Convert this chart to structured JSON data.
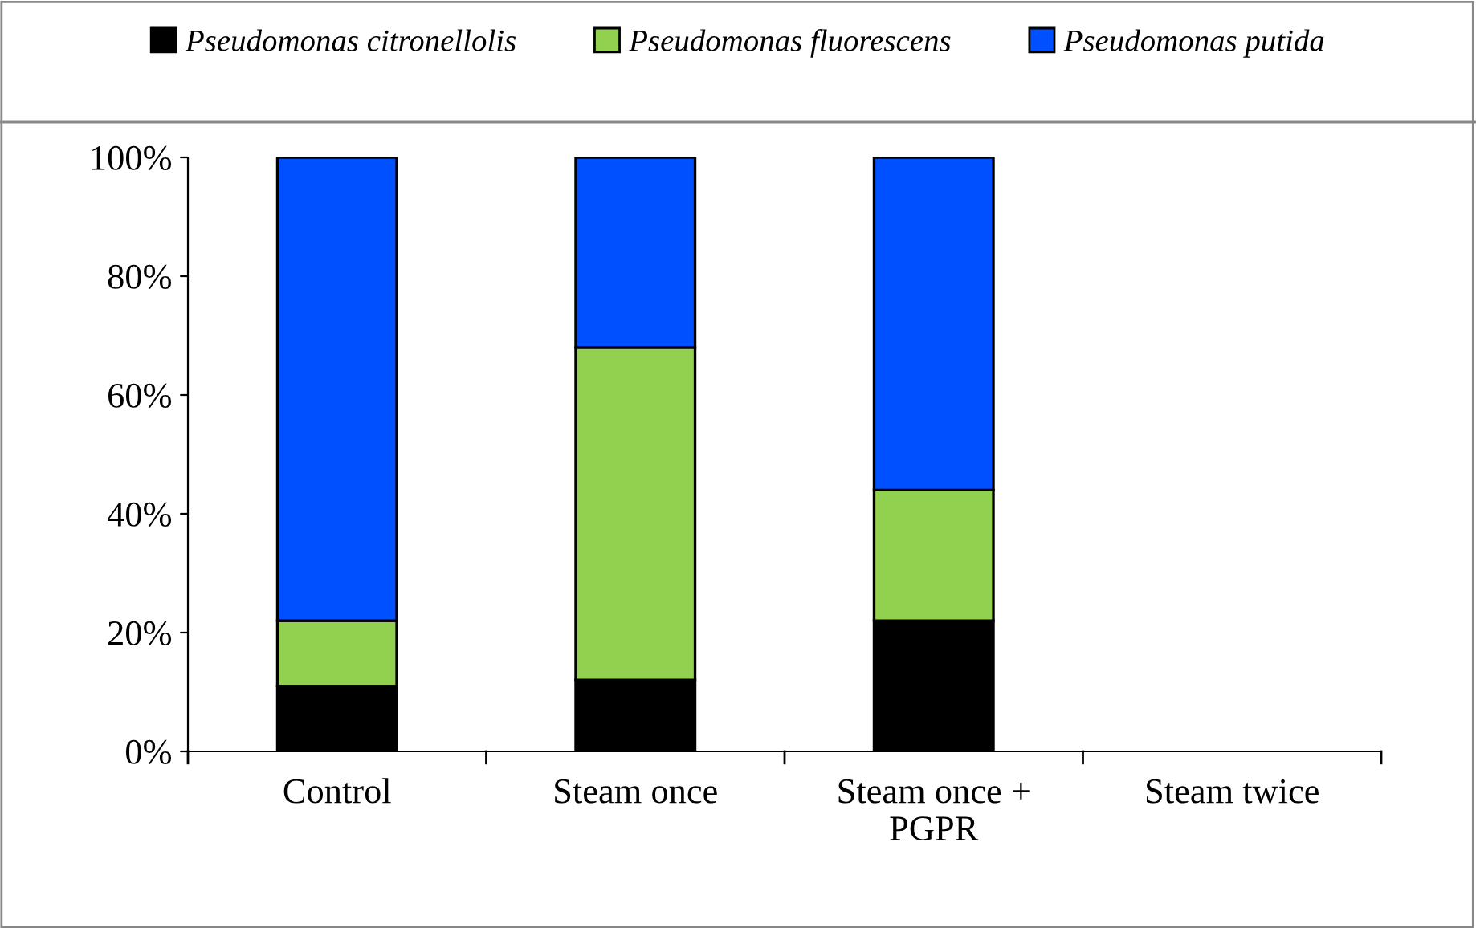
{
  "chart_data": {
    "type": "bar",
    "stacked": true,
    "categories": [
      "Control",
      "Steam once",
      "Steam once +\nPGPR",
      "Steam twice"
    ],
    "series": [
      {
        "name": "Pseudomonas citronellolis",
        "color": "#000000",
        "values": [
          11,
          12,
          22,
          null
        ]
      },
      {
        "name": "Pseudomonas fluorescens",
        "color": "#92d050",
        "values": [
          11,
          56,
          22,
          null
        ]
      },
      {
        "name": "Pseudomonas putida",
        "color": "#0050ff",
        "values": [
          78,
          32,
          56,
          null
        ]
      }
    ],
    "ylim": [
      0,
      100
    ],
    "yticks": [
      {
        "value": 0,
        "label": "0%"
      },
      {
        "value": 20,
        "label": "20%"
      },
      {
        "value": 40,
        "label": "40%"
      },
      {
        "value": 60,
        "label": "60%"
      },
      {
        "value": 80,
        "label": "80%"
      },
      {
        "value": 100,
        "label": "100%"
      }
    ],
    "legend": "top",
    "grid": false
  }
}
